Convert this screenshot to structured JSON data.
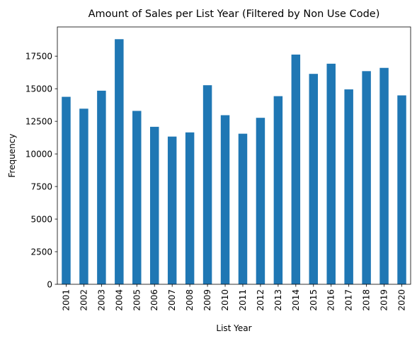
{
  "chart_data": {
    "type": "bar",
    "title": "Amount of Sales per List Year (Filtered by Non Use Code)",
    "xlabel": "List Year",
    "ylabel": "Frequency",
    "categories": [
      "2001",
      "2002",
      "2003",
      "2004",
      "2005",
      "2006",
      "2007",
      "2008",
      "2009",
      "2010",
      "2011",
      "2012",
      "2013",
      "2014",
      "2015",
      "2016",
      "2017",
      "2018",
      "2019",
      "2020"
    ],
    "values": [
      14380,
      13470,
      14850,
      18800,
      13300,
      12080,
      11330,
      11650,
      15270,
      12970,
      11550,
      12770,
      14430,
      17620,
      16140,
      16920,
      14950,
      16350,
      16600,
      14490
    ],
    "yticks": [
      0,
      2500,
      5000,
      7500,
      10000,
      12500,
      15000,
      17500
    ],
    "ylim": [
      0,
      19740
    ],
    "bar_color": "#1f77b4",
    "grid": false,
    "legend": false
  }
}
